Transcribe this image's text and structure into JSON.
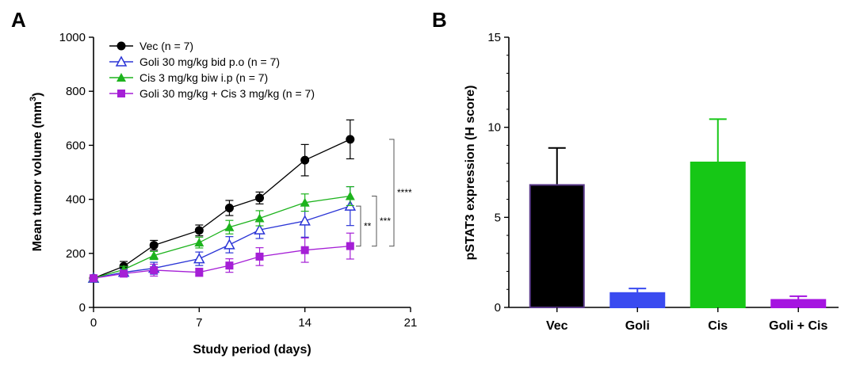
{
  "chart_data": [
    {
      "panel": "A",
      "type": "line",
      "xlabel": "Study period (days)",
      "ylabel": "Mean tumor volume (mm",
      "ylabel_sup": "3",
      "ylabel_close": ")",
      "xlim": [
        0,
        21
      ],
      "ylim": [
        0,
        1000
      ],
      "xticks": [
        0,
        7,
        14,
        21
      ],
      "yticks": [
        0,
        200,
        400,
        600,
        800,
        1000
      ],
      "legend_position": "top-left",
      "series": [
        {
          "name": "Vec (n = 7)",
          "color": "#000000",
          "marker": "circle-filled",
          "x": [
            0,
            2,
            4,
            7,
            9,
            11,
            14,
            17
          ],
          "y": [
            108,
            152,
            230,
            285,
            368,
            405,
            545,
            622
          ],
          "err": [
            10,
            18,
            18,
            20,
            28,
            22,
            58,
            72
          ]
        },
        {
          "name": "Goli 30 mg/kg bid p.o (n = 7)",
          "color": "#2b35d6",
          "marker": "triangle-open",
          "x": [
            0,
            2,
            4,
            7,
            9,
            11,
            14,
            17
          ],
          "y": [
            108,
            130,
            145,
            180,
            232,
            287,
            320,
            375
          ],
          "err": [
            10,
            12,
            22,
            25,
            30,
            32,
            60,
            72
          ]
        },
        {
          "name": "Cis 3 mg/kg biw i.p (n = 7)",
          "color": "#1db31d",
          "marker": "triangle-filled",
          "x": [
            0,
            2,
            4,
            7,
            9,
            11,
            14,
            17
          ],
          "y": [
            108,
            140,
            192,
            240,
            297,
            330,
            388,
            412
          ],
          "err": [
            10,
            12,
            15,
            20,
            25,
            28,
            32,
            35
          ]
        },
        {
          "name": "Goli 30 mg/kg + Cis 3 mg/kg (n = 7)",
          "color": "#a51fd6",
          "marker": "square-filled",
          "x": [
            0,
            2,
            4,
            7,
            9,
            11,
            14,
            17
          ],
          "y": [
            108,
            125,
            138,
            130,
            155,
            188,
            212,
            227
          ],
          "err": [
            10,
            10,
            22,
            15,
            25,
            33,
            45,
            48
          ]
        }
      ],
      "significance": [
        {
          "label": "**",
          "from_y": 375,
          "to_y": 227
        },
        {
          "label": "***",
          "from_y": 412,
          "to_y": 227
        },
        {
          "label": "****",
          "from_y": 622,
          "to_y": 227
        }
      ]
    },
    {
      "panel": "B",
      "type": "bar",
      "ylabel": "pSTAT3 expression (H score)",
      "ylim": [
        0,
        15
      ],
      "yticks": [
        0,
        5,
        10,
        15
      ],
      "categories": [
        "Vec",
        "Goli",
        "Cis",
        "Goli + Cis"
      ],
      "values": [
        6.8,
        0.8,
        8.05,
        0.42
      ],
      "errors": [
        2.05,
        0.25,
        2.4,
        0.2
      ],
      "colors": [
        "#000000",
        "#3a4bf0",
        "#16c716",
        "#a514e0"
      ],
      "edge_colors": [
        "#5a3a8a",
        "#3a4bf0",
        "#16c716",
        "#a514e0"
      ]
    }
  ]
}
